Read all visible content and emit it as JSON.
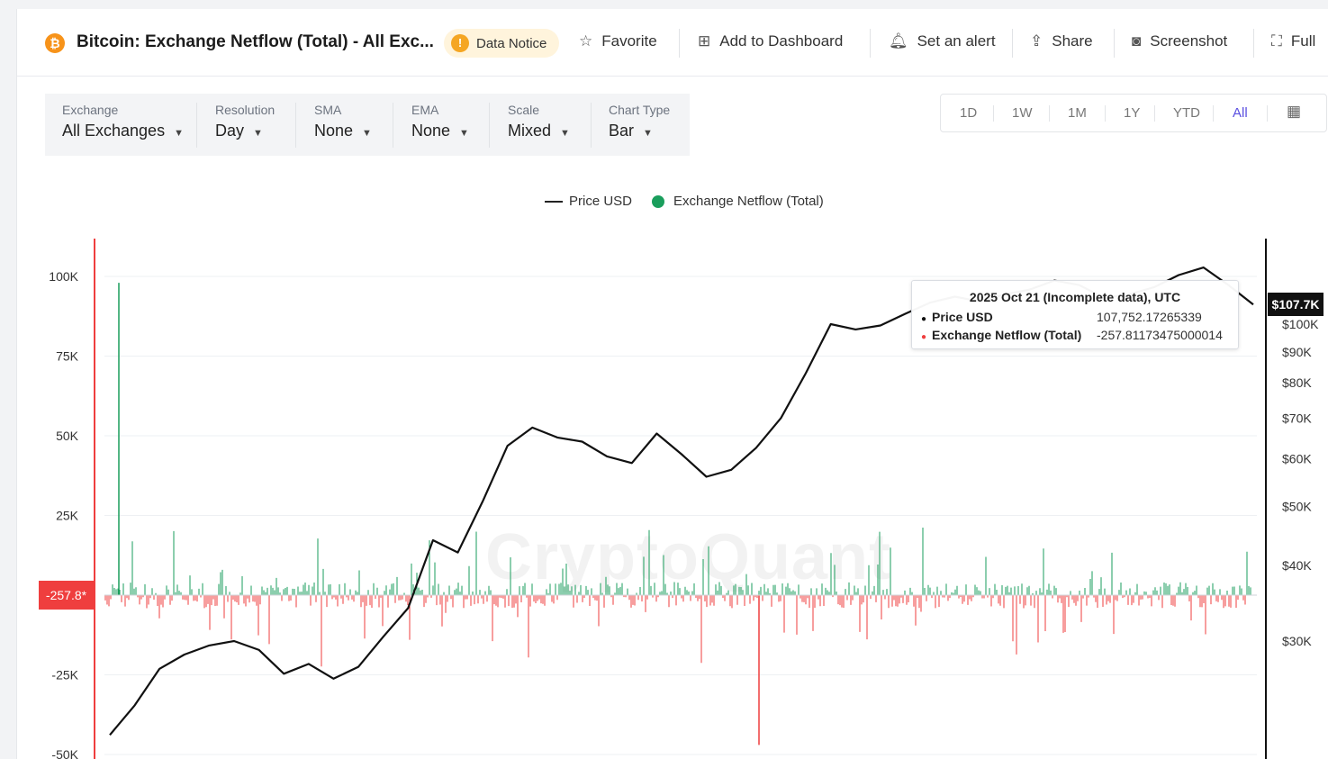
{
  "header": {
    "title": "Bitcoin: Exchange Netflow (Total) - All Exc...",
    "coin_symbol": "₿",
    "data_notice_label": "Data Notice",
    "actions": [
      {
        "label": "Favorite",
        "icon": "star-icon"
      },
      {
        "label": "Add to Dashboard",
        "icon": "add-dashboard-icon"
      },
      {
        "label": "Set an alert",
        "icon": "bell-icon"
      },
      {
        "label": "Share",
        "icon": "share-icon"
      },
      {
        "label": "Screenshot",
        "icon": "camera-icon"
      },
      {
        "label": "Full",
        "icon": "fullscreen-icon"
      }
    ]
  },
  "filters": [
    {
      "label": "Exchange",
      "value": "All Exchanges"
    },
    {
      "label": "Resolution",
      "value": "Day"
    },
    {
      "label": "SMA",
      "value": "None"
    },
    {
      "label": "EMA",
      "value": "None"
    },
    {
      "label": "Scale",
      "value": "Mixed"
    },
    {
      "label": "Chart Type",
      "value": "Bar"
    }
  ],
  "ranges": [
    "1D",
    "1W",
    "1M",
    "1Y",
    "YTD",
    "All"
  ],
  "active_range": "All",
  "colors": {
    "inflow": "#1a9e5c",
    "outflow": "#ef3e3e",
    "price": "#111111",
    "accent": "#5a4fe0",
    "coin": "#f7931a"
  },
  "watermark": "CryptoQuant",
  "chart_data": {
    "type": "bar",
    "legend": [
      {
        "name": "Price USD",
        "style": "line"
      },
      {
        "name": "Exchange Netflow (Total)",
        "style": "dot"
      }
    ],
    "legend_position": "top-center",
    "grid": true,
    "y_left": {
      "ticks": [
        "100K",
        "75K",
        "50K",
        "25K",
        "-25K",
        "-50K"
      ],
      "tick_values": [
        100000,
        75000,
        50000,
        25000,
        -25000,
        -50000
      ],
      "range": [
        -50000,
        100000
      ]
    },
    "y_right": {
      "scale": "log",
      "ticks": [
        "$100K",
        "$90K",
        "$80K",
        "$70K",
        "$60K",
        "$50K",
        "$40K",
        "$30K"
      ],
      "tick_values": [
        100000,
        90000,
        80000,
        70000,
        60000,
        50000,
        40000,
        30000
      ]
    },
    "price_series_usd": [
      21000,
      23500,
      27000,
      28500,
      29500,
      30000,
      29000,
      26500,
      27500,
      26000,
      27200,
      30500,
      34000,
      44000,
      42000,
      51000,
      63000,
      67500,
      65000,
      64000,
      60500,
      59000,
      66000,
      61000,
      56000,
      57500,
      62500,
      70000,
      83000,
      100000,
      98000,
      99500,
      104000,
      108500,
      111000,
      109000,
      112000,
      114000,
      118000,
      116000,
      110500,
      112000,
      115000,
      120500,
      124000,
      116000,
      107752
    ],
    "netflow_highlights": [
      {
        "label": "max inflow spike",
        "value": 98000
      },
      {
        "label": "max outflow spike",
        "value": -47000
      }
    ],
    "current_price_label": "$107.7K",
    "current_netflow_label": "-257.8*"
  },
  "tooltip": {
    "date": "2025 Oct 21 (Incomplete data), UTC",
    "price_label": "Price USD",
    "price_value": "107,752.17265339",
    "netflow_label": "Exchange Netflow (Total)",
    "netflow_value": "-257.81173475000014"
  }
}
